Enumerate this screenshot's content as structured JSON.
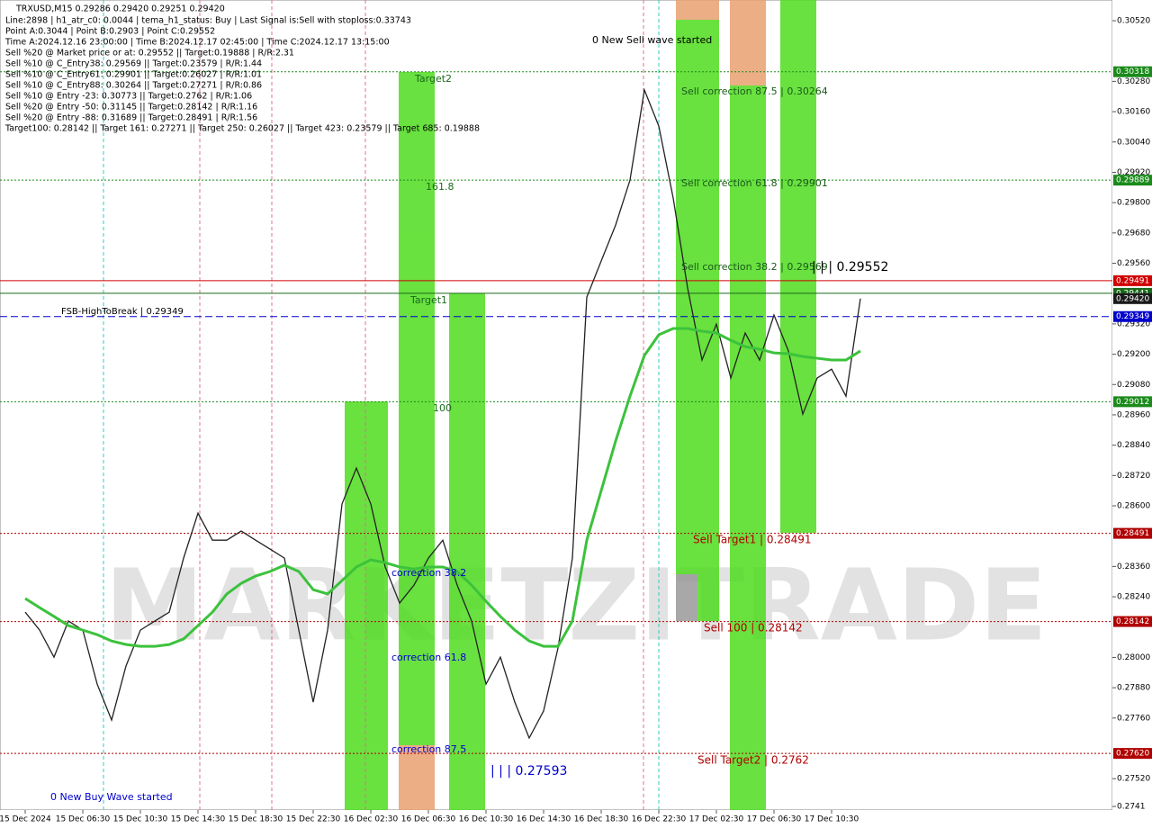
{
  "chart_data": {
    "type": "line",
    "symbol_info": "TRXUSD,M15  0.29286 0.29420 0.29251 0.29420",
    "info_lines": [
      "Line:2898 | h1_atr_c0: 0.0044 | tema_h1_status: Buy | Last Signal is:Sell with stoploss:0.33743",
      "Point A:0.3044 | Point B:0.2903 | Point C:0.29552",
      "Time A:2024.12.16 23:00:00 | Time B:2024.12.17 02:45:00 | Time C:2024.12.17 13:15:00",
      "Sell %20 @ Market price or at: 0.29552 || Target:0.19888 | R/R:2.31",
      "Sell %10 @ C_Entry38: 0.29569 || Target:0.23579 | R/R:1.44",
      "Sell %10 @ C_Entry61: 0.29901 || Target:0.26027 | R/R:1.01",
      "Sell %10 @ C_Entry88: 0.30264 || Target:0.27271 | R/R:0.86",
      "Sell %10 @ Entry -23: 0.30773 || Target:0.2762 | R/R:1.06",
      "Sell %20 @ Entry -50: 0.31145 || Target:0.28142 | R/R:1.16",
      "Sell %20 @ Entry -88: 0.31689 || Target:0.28491 | R/R:1.56",
      "Target100: 0.28142 || Target 161: 0.27271 || Target 250: 0.26027 || Target 423: 0.23579 || Target 685: 0.19888"
    ],
    "watermark": "MARKETZITRADE",
    "annotations": [
      "0 New Sell wave started",
      "Sell correction 87.5 | 0.30264",
      "Sell correction 61.8 | 0.29901",
      "Sell correction 38.2 | 0.29569",
      "| | | 0.29552",
      "Target2",
      "161.8",
      "Target1",
      "100",
      "FSB-HighToBreak | 0.29349",
      "correction 38.2",
      "correction 61.8",
      "correction 87.5",
      "| | | 0.27593",
      "Sell Target1 | 0.28491",
      "Sell 100 | 0.28142",
      "Sell Target2 | 0.2762",
      "0 New Buy Wave started"
    ],
    "x": [
      "15 Dec 2024",
      null,
      null,
      null,
      "15 Dec 06:30",
      null,
      null,
      null,
      "15 Dec 10:30",
      null,
      null,
      null,
      "15 Dec 14:30",
      null,
      null,
      null,
      "15 Dec 18:30",
      null,
      null,
      null,
      "15 Dec 22:30",
      null,
      null,
      null,
      "16 Dec 02:30",
      null,
      null,
      null,
      "16 Dec 06:30",
      null,
      null,
      null,
      "16 Dec 10:30",
      null,
      null,
      null,
      "16 Dec 14:30",
      null,
      null,
      null,
      "16 Dec 18:30",
      null,
      null,
      null,
      "16 Dec 22:30",
      null,
      null,
      null,
      "17 Dec 02:30",
      null,
      null,
      null,
      "17 Dec 06:30",
      null,
      null,
      null,
      "17 Dec 10:30",
      null,
      null
    ],
    "series": [
      {
        "color": "#222222",
        "values": [
          0.28179,
          0.28108,
          0.28001,
          0.28144,
          0.28108,
          0.27894,
          0.27752,
          0.27966,
          0.28108,
          0.28144,
          0.28179,
          0.28393,
          0.28571,
          0.28464,
          0.28464,
          0.285,
          0.28464,
          0.28429,
          0.28393,
          0.28108,
          0.27823,
          0.28108,
          0.28607,
          0.28749,
          0.28607,
          0.28358,
          0.28215,
          0.28286,
          0.28393,
          0.28464,
          0.28286,
          0.28144,
          0.27894,
          0.28001,
          0.27823,
          0.27681,
          0.27788,
          0.28037,
          0.28393,
          0.29426,
          0.29569,
          0.29711,
          0.29889,
          0.30246,
          0.30103,
          0.29818,
          0.29462,
          0.29177,
          0.29319,
          0.29106,
          0.29284,
          0.29177,
          0.29355,
          0.29213,
          0.28963,
          0.29106,
          0.29141,
          0.29034,
          0.2942
        ]
      },
      {
        "color": "#3cc23c",
        "values": [
          0.28233,
          0.28197,
          0.28162,
          0.28126,
          0.28108,
          0.2809,
          0.28065,
          0.28051,
          0.28044,
          0.28044,
          0.28051,
          0.28073,
          0.28126,
          0.28179,
          0.28251,
          0.28293,
          0.28322,
          0.2834,
          0.28365,
          0.2834,
          0.28268,
          0.28251,
          0.28304,
          0.28358,
          0.28386,
          0.28375,
          0.28358,
          0.2835,
          0.28358,
          0.28358,
          0.2834,
          0.28286,
          0.28222,
          0.28162,
          0.28108,
          0.28065,
          0.28044,
          0.28044,
          0.28144,
          0.28464,
          0.2866,
          0.28856,
          0.29034,
          0.29195,
          0.29277,
          0.29302,
          0.29302,
          0.29291,
          0.29284,
          0.29255,
          0.2923,
          0.2922,
          0.29205,
          0.29202,
          0.29191,
          0.29184,
          0.29177,
          0.29177,
          0.29213
        ]
      }
    ],
    "ylim": [
      0.27396,
      0.30602
    ],
    "yticks": [
      {
        "value": 0.3052,
        "label": "0.30520"
      },
      {
        "value": 0.3028,
        "label": "0.30280"
      },
      {
        "value": 0.3016,
        "label": "0.30160"
      },
      {
        "value": 0.3004,
        "label": "0.30040"
      },
      {
        "value": 0.2992,
        "label": "0.29920"
      },
      {
        "value": 0.298,
        "label": "0.29800"
      },
      {
        "value": 0.2968,
        "label": "0.29680"
      },
      {
        "value": 0.2956,
        "label": "0.29560"
      },
      {
        "value": 0.2932,
        "label": "0.29320"
      },
      {
        "value": 0.292,
        "label": "0.29200"
      },
      {
        "value": 0.2908,
        "label": "0.29080"
      },
      {
        "value": 0.2896,
        "label": "0.28960"
      },
      {
        "value": 0.2884,
        "label": "0.28840"
      },
      {
        "value": 0.2872,
        "label": "0.28720"
      },
      {
        "value": 0.286,
        "label": "0.28600"
      },
      {
        "value": 0.2836,
        "label": "0.28360"
      },
      {
        "value": 0.2824,
        "label": "0.28240"
      },
      {
        "value": 0.28,
        "label": "0.28000"
      },
      {
        "value": 0.2788,
        "label": "0.27880"
      },
      {
        "value": 0.2776,
        "label": "0.27760"
      },
      {
        "value": 0.2752,
        "label": "0.27520"
      },
      0.2741
    ],
    "levels": [
      {
        "value": 0.30318,
        "color": "#1a8a1a",
        "style": "dotted"
      },
      {
        "value": 0.29889,
        "color": "#1a8a1a",
        "style": "dotted"
      },
      {
        "value": 0.29491,
        "color": "#d00000",
        "style": "solid"
      },
      {
        "value": 0.29441,
        "color": "#1a6a1a",
        "style": "solid"
      },
      {
        "value": 0.2942,
        "label": "0.29420",
        "color": "#1a1a1a",
        "style": "none"
      },
      {
        "value": 0.29349,
        "color": "#0000cc",
        "style": "dashed"
      },
      {
        "value": 0.29012,
        "color": "#1a8a1a",
        "style": "dotted"
      },
      {
        "value": 0.28491,
        "color": "#b00000",
        "style": "dotted"
      },
      {
        "value": 0.28142,
        "color": "#b00000",
        "style": "dotted"
      },
      {
        "value": 0.2762,
        "label": "0.27620",
        "color": "#b00000",
        "style": "dotted"
      }
    ]
  }
}
